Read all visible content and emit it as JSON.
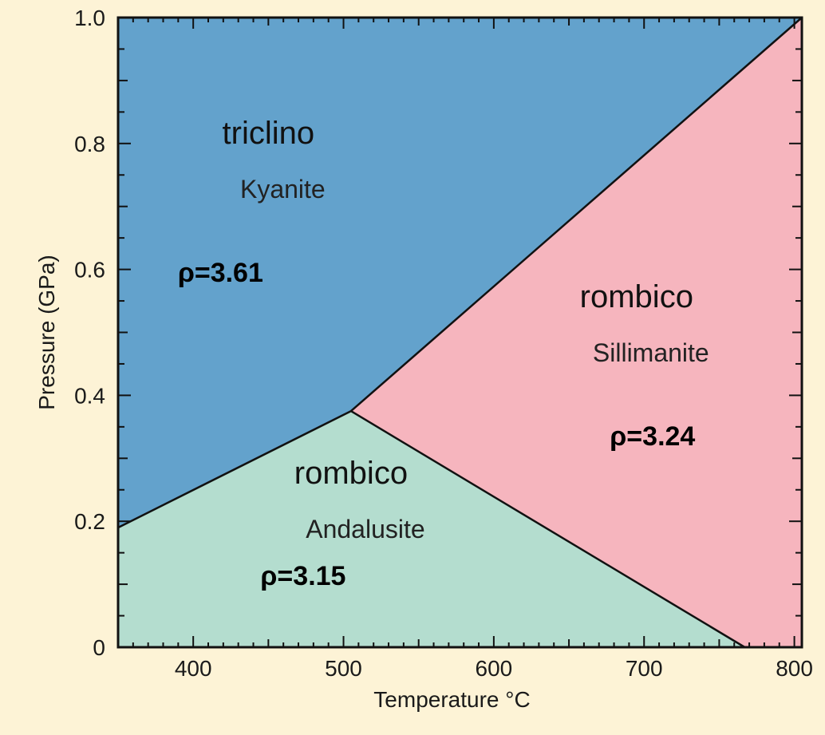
{
  "chart_data": {
    "type": "area",
    "title": "",
    "xlabel": "Temperature °C",
    "ylabel": "Pressure (GPa)",
    "xlim": [
      350,
      805
    ],
    "ylim": [
      0,
      1.0
    ],
    "x_ticks": [
      400,
      500,
      600,
      700,
      800
    ],
    "y_ticks": [
      0,
      0.2,
      0.4,
      0.6,
      0.8,
      1.0
    ],
    "y_tick_labels": [
      "0",
      "0.2",
      "0.4",
      "0.6",
      "0.8",
      "1.0"
    ],
    "x_tick_labels": [
      "400",
      "500",
      "600",
      "700",
      "800"
    ],
    "grid": false,
    "triple_point": {
      "x": 505,
      "y": 0.375
    },
    "boundaries": [
      {
        "name": "kyanite-andalusite",
        "points": [
          [
            350,
            0.19
          ],
          [
            505,
            0.375
          ]
        ]
      },
      {
        "name": "kyanite-sillimanite",
        "points": [
          [
            505,
            0.375
          ],
          [
            805,
            1.0
          ]
        ]
      },
      {
        "name": "andalusite-sillimanite",
        "points": [
          [
            505,
            0.375
          ],
          [
            767,
            0.0
          ]
        ]
      }
    ],
    "regions": [
      {
        "id": "kyanite",
        "system": "triclino",
        "mineral": "Kyanite",
        "density": "ρ=3.61",
        "color": "#63a2cc",
        "polygon": [
          [
            350,
            1.0
          ],
          [
            805,
            1.0
          ],
          [
            505,
            0.375
          ],
          [
            350,
            0.19
          ]
        ],
        "label_pos": {
          "x": 450,
          "y": 0.8
        }
      },
      {
        "id": "sillimanite",
        "system": "rombico",
        "mineral": "Sillimanite",
        "density": "ρ=3.24",
        "color": "#f6b5be",
        "polygon": [
          [
            805,
            1.0
          ],
          [
            805,
            0.0
          ],
          [
            767,
            0.0
          ],
          [
            505,
            0.375
          ]
        ],
        "label_pos": {
          "x": 695,
          "y": 0.54
        }
      },
      {
        "id": "andalusite",
        "system": "rombico",
        "mineral": "Andalusite",
        "density": "ρ=3.15",
        "color": "#b4ddcf",
        "polygon": [
          [
            350,
            0.19
          ],
          [
            505,
            0.375
          ],
          [
            767,
            0.0
          ],
          [
            350,
            0.0
          ]
        ],
        "label_pos": {
          "x": 505,
          "y": 0.26
        }
      }
    ]
  }
}
